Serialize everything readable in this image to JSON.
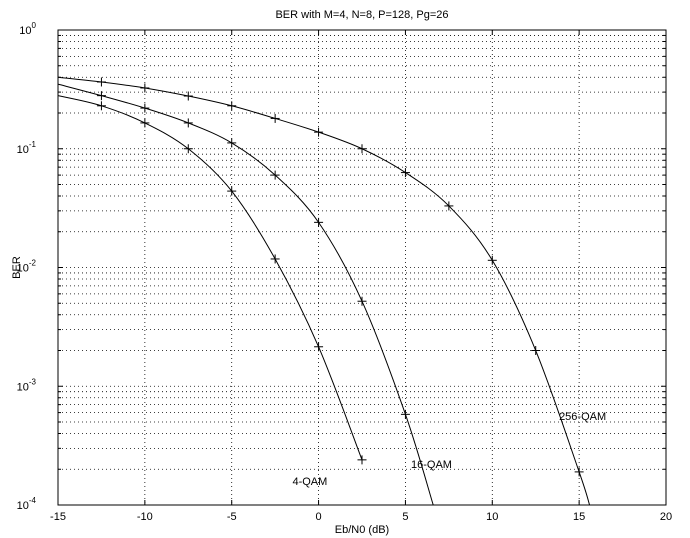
{
  "chart_data": {
    "type": "line",
    "title": "BER with M=4, N=8, P=128, Pg=26",
    "xlabel": "Eb/N0 (dB)",
    "ylabel": "BER",
    "xlim": [
      -15,
      20
    ],
    "ylim": [
      0.0001,
      1
    ],
    "yscale": "log",
    "grid": true,
    "grid_style": "dotted",
    "x_ticks": [
      -15,
      -10,
      -5,
      0,
      5,
      10,
      15,
      20
    ],
    "x_tick_labels": [
      "-15",
      "-10",
      "-5",
      "0",
      "5",
      "10",
      "15",
      "20"
    ],
    "y_ticks": [
      {
        "value": 1,
        "base": "10",
        "exp": "0"
      },
      {
        "value": 0.1,
        "base": "10",
        "exp": "-1"
      },
      {
        "value": 0.01,
        "base": "10",
        "exp": "-2"
      },
      {
        "value": 0.001,
        "base": "10",
        "exp": "-3"
      },
      {
        "value": 0.0001,
        "base": "10",
        "exp": "-4"
      }
    ],
    "marker": "+",
    "line_color": "#000000",
    "series": [
      {
        "name": "4-QAM",
        "label_at": [
          -0.5,
          0.000148
        ],
        "curve": [
          [
            -15,
            0.28
          ],
          [
            -12.5,
            0.23
          ],
          [
            -10,
            0.165
          ],
          [
            -7.5,
            0.1
          ],
          [
            -5,
            0.044
          ],
          [
            -2.5,
            0.0118
          ],
          [
            0,
            0.00215
          ],
          [
            2.5,
            0.00024
          ]
        ],
        "markers": [
          [
            -12.5,
            0.23
          ],
          [
            -10,
            0.165
          ],
          [
            -7.5,
            0.1
          ],
          [
            -5,
            0.044
          ],
          [
            -2.5,
            0.0118
          ],
          [
            0,
            0.00215
          ],
          [
            2.5,
            0.00024
          ]
        ]
      },
      {
        "name": "16-QAM",
        "label_at": [
          6.5,
          0.000205
        ],
        "curve": [
          [
            -15,
            0.35
          ],
          [
            -12.5,
            0.28
          ],
          [
            -10,
            0.22
          ],
          [
            -7.5,
            0.165
          ],
          [
            -5,
            0.112
          ],
          [
            -2.5,
            0.06
          ],
          [
            0,
            0.024
          ],
          [
            2.5,
            0.0052
          ],
          [
            5,
            0.00058
          ],
          [
            6.6,
            0.0001
          ]
        ],
        "markers": [
          [
            -12.5,
            0.28
          ],
          [
            -10,
            0.22
          ],
          [
            -7.5,
            0.165
          ],
          [
            -5,
            0.112
          ],
          [
            -2.5,
            0.06
          ],
          [
            0,
            0.024
          ],
          [
            2.5,
            0.0052
          ],
          [
            5,
            0.00058
          ]
        ]
      },
      {
        "name": "256-QAM",
        "label_at": [
          15.2,
          0.00052
        ],
        "curve": [
          [
            -15,
            0.4
          ],
          [
            -12.5,
            0.365
          ],
          [
            -10,
            0.325
          ],
          [
            -7.5,
            0.278
          ],
          [
            -5,
            0.23
          ],
          [
            -2.5,
            0.18
          ],
          [
            0,
            0.138
          ],
          [
            2.5,
            0.1
          ],
          [
            5,
            0.063
          ],
          [
            7.5,
            0.033
          ],
          [
            10,
            0.0115
          ],
          [
            12.5,
            0.002
          ],
          [
            15,
            0.00019
          ],
          [
            15.6,
            0.0001
          ]
        ],
        "markers": [
          [
            -12.5,
            0.365
          ],
          [
            -10,
            0.325
          ],
          [
            -7.5,
            0.278
          ],
          [
            -5,
            0.23
          ],
          [
            -2.5,
            0.18
          ],
          [
            0,
            0.138
          ],
          [
            2.5,
            0.1
          ],
          [
            5,
            0.063
          ],
          [
            7.5,
            0.033
          ],
          [
            10,
            0.0115
          ],
          [
            12.5,
            0.002
          ],
          [
            15,
            0.00019
          ]
        ]
      }
    ]
  }
}
